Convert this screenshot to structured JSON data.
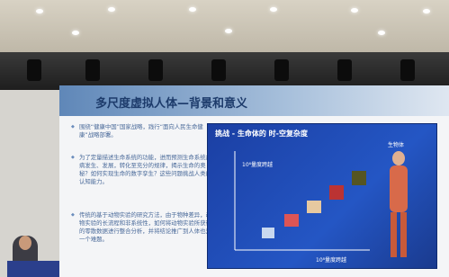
{
  "slide": {
    "title": "多尺度虚拟人体—背景和意义",
    "bullets": [
      "围绕“健康中国”国家战略，践行“面向人民生命健康”战略部署。",
      "为了定量描述生命系统的功能，进而预测生命系统疾病发生、发展，转化至充分的规律，揭示生命的奥秘？如何实现生命的数字孪生？这些问题挑战人类的认知能力。",
      "传统的基于动物实验的研究方法，由于物种差异，动物实验的长流程和非系统性，如何将动物实验所获得的零散数据进行整合分析，并将结论推广到人体也是一个难题。"
    ],
    "figure": {
      "title": "挑战 - 生命体的 时-空复杂度",
      "organism_label": "生物体",
      "vertical_axis": "10⁶量度跨越",
      "horizontal_axis": "10⁸量度跨越"
    }
  }
}
